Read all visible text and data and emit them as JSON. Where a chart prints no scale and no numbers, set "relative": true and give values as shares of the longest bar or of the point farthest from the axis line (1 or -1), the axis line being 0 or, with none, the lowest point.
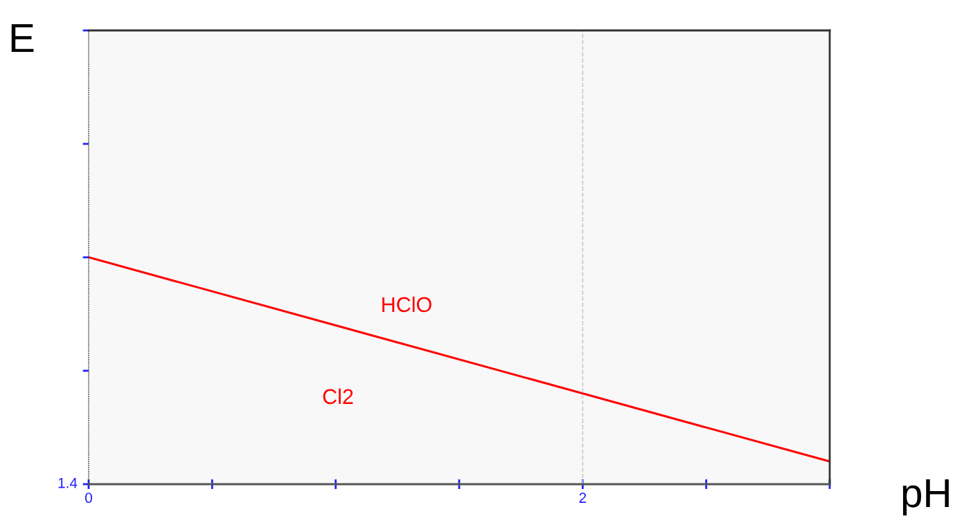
{
  "chart_data": {
    "type": "line",
    "xlabel": "pH",
    "relative": true,
    "x": [
      0,
      3
    ],
    "xlim": [
      0,
      3
    ],
    "xticks": [
      0,
      {
        "value": 0.5,
        "label": null
      },
      {
        "value": 1,
        "label": null
      },
      {
        "value": 1.5,
        "label": null
      },
      2,
      {
        "value": 2.5,
        "label": null
      },
      {
        "value": 3,
        "label": null
      }
    ],
    "series": [
      {
        "color": "#ff0000",
        "values": [
          1,
          0.1
        ]
      }
    ],
    "annotations": [
      "E",
      "HClO",
      "Cl2",
      "1.4"
    ],
    "ref_lines": [
      {
        "axis": "x",
        "value": 2,
        "color": "#c8c8c8",
        "line_style": "dashed"
      }
    ],
    "grid": false,
    "legend": false,
    "marker": "none",
    "line_style": "solid"
  }
}
